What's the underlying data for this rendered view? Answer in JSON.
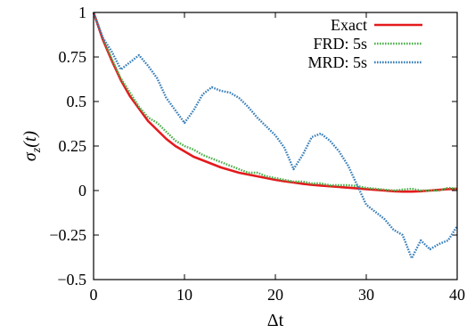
{
  "chart_data": {
    "type": "line",
    "xlabel": "Δt",
    "ylabel": "σz(t)",
    "ylabel_parts": {
      "base": "σ",
      "sub": "z",
      "rest": "(t)"
    },
    "xlim": [
      0,
      40
    ],
    "ylim": [
      -0.5,
      1
    ],
    "xticks": [
      0,
      10,
      20,
      30,
      40
    ],
    "xtick_labels": [
      "0",
      "10",
      "20",
      "30",
      "40"
    ],
    "yticks": [
      1,
      0.75,
      0.5,
      0.25,
      0,
      -0.25,
      -0.5
    ],
    "ytick_labels": [
      "1",
      "0.75",
      "0.5",
      "0.25",
      "0",
      "−0.25",
      "−0.5"
    ],
    "grid": false,
    "legend_position": "top-right",
    "series": [
      {
        "name": "Exact",
        "color": "#e41a1c",
        "style": "solid",
        "x": [
          0,
          1,
          2,
          3,
          4,
          5,
          6,
          7,
          8,
          9,
          10,
          11,
          12,
          13,
          14,
          15,
          16,
          17,
          18,
          19,
          20,
          21,
          22,
          23,
          24,
          25,
          26,
          27,
          28,
          29,
          30,
          31,
          32,
          33,
          34,
          35,
          36,
          37,
          38,
          39,
          40
        ],
        "values": [
          1.0,
          0.85,
          0.73,
          0.62,
          0.53,
          0.46,
          0.39,
          0.34,
          0.29,
          0.25,
          0.22,
          0.19,
          0.17,
          0.15,
          0.13,
          0.115,
          0.1,
          0.09,
          0.08,
          0.07,
          0.06,
          0.052,
          0.045,
          0.038,
          0.032,
          0.028,
          0.024,
          0.02,
          0.016,
          0.012,
          0.008,
          0.004,
          0.0,
          -0.004,
          -0.006,
          -0.006,
          -0.004,
          0.0,
          0.004,
          0.008,
          0.01
        ]
      },
      {
        "name": "FRD: 5s",
        "color": "#4daf4a",
        "style": "dotted",
        "x": [
          0,
          1,
          2,
          3,
          4,
          5,
          6,
          7,
          8,
          9,
          10,
          11,
          12,
          13,
          14,
          15,
          16,
          17,
          18,
          19,
          20,
          21,
          22,
          23,
          24,
          25,
          26,
          27,
          28,
          29,
          30,
          31,
          32,
          33,
          34,
          35,
          36,
          37,
          38,
          39,
          40
        ],
        "values": [
          1.0,
          0.86,
          0.74,
          0.63,
          0.55,
          0.47,
          0.41,
          0.38,
          0.33,
          0.28,
          0.25,
          0.23,
          0.2,
          0.18,
          0.16,
          0.14,
          0.12,
          0.1,
          0.1,
          0.08,
          0.07,
          0.06,
          0.05,
          0.05,
          0.04,
          0.04,
          0.03,
          0.03,
          0.03,
          0.025,
          0.015,
          0.01,
          0.005,
          0.0,
          0.005,
          0.01,
          0.0,
          0.0,
          0.0,
          0.015,
          0.01
        ]
      },
      {
        "name": "MRD: 5s",
        "color": "#377eb8",
        "style": "dotted",
        "x": [
          0,
          1,
          2,
          3,
          4,
          5,
          6,
          7,
          8,
          9,
          10,
          11,
          12,
          13,
          14,
          15,
          16,
          17,
          18,
          19,
          20,
          21,
          22,
          23,
          24,
          25,
          26,
          27,
          28,
          29,
          30,
          31,
          32,
          33,
          34,
          35,
          36,
          37,
          38,
          39,
          40
        ],
        "values": [
          1.0,
          0.86,
          0.78,
          0.68,
          0.72,
          0.76,
          0.7,
          0.63,
          0.52,
          0.45,
          0.38,
          0.45,
          0.54,
          0.58,
          0.56,
          0.55,
          0.52,
          0.47,
          0.41,
          0.36,
          0.31,
          0.24,
          0.12,
          0.2,
          0.3,
          0.32,
          0.28,
          0.22,
          0.14,
          0.03,
          -0.08,
          -0.12,
          -0.16,
          -0.22,
          -0.25,
          -0.38,
          -0.28,
          -0.33,
          -0.3,
          -0.28,
          -0.2
        ]
      }
    ]
  }
}
